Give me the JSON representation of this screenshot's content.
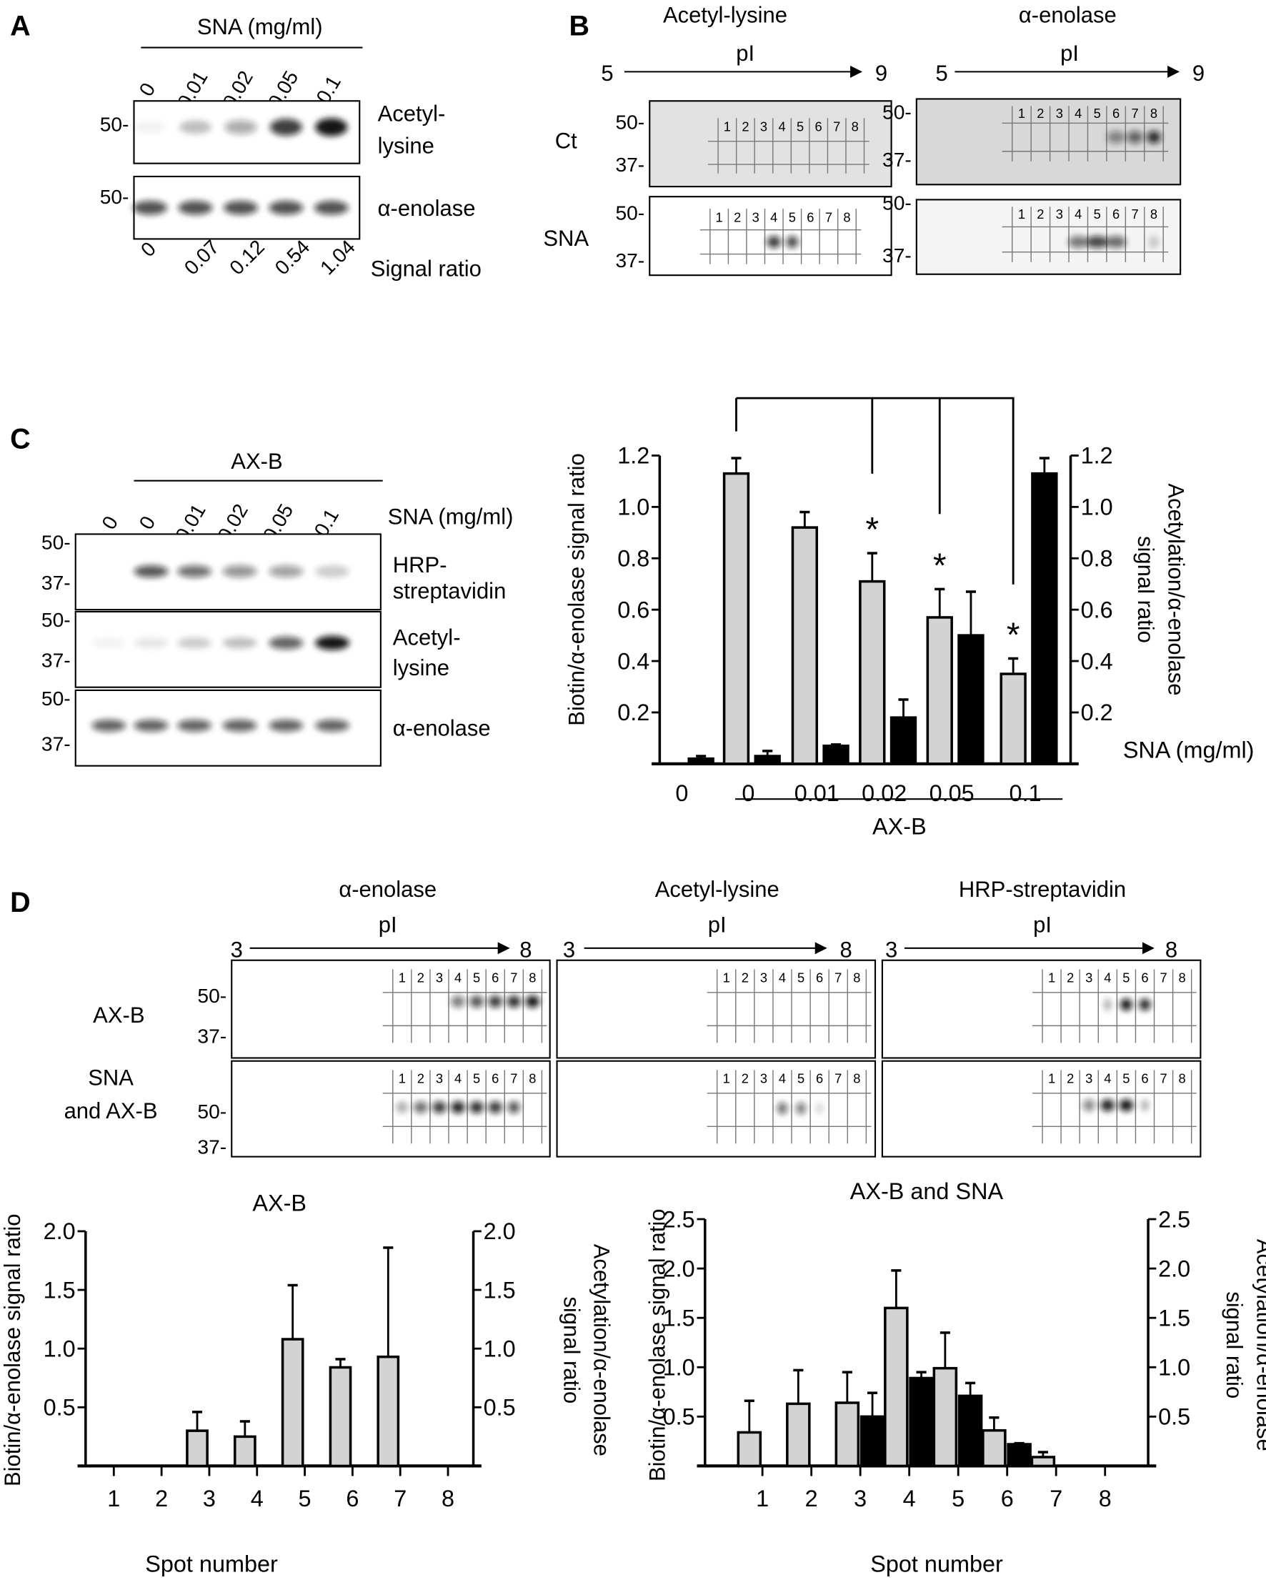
{
  "panel_labels": {
    "a": "A",
    "b": "B",
    "c": "C",
    "d": "D"
  },
  "panel_a": {
    "header": "SNA (mg/ml)",
    "lanes": [
      "0",
      "0.01",
      "0.02",
      "0.05",
      "0.1"
    ],
    "mw": [
      "50-",
      "50-"
    ],
    "blot_labels": [
      [
        "Acetyl-",
        "lysine"
      ],
      [
        "α-enolase"
      ]
    ],
    "signal_ratio_values": [
      "0",
      "0.07",
      "0.12",
      "0.54",
      "1.04"
    ],
    "signal_ratio_label": "Signal ratio"
  },
  "panel_b": {
    "columns": [
      "Acetyl-lysine",
      "α-enolase"
    ],
    "pi_label": "pI",
    "pi_start": "5",
    "pi_end": "9",
    "rows": [
      "Ct",
      "SNA"
    ],
    "mw": [
      "50-",
      "37-"
    ],
    "spots": [
      "1",
      "2",
      "3",
      "4",
      "5",
      "6",
      "7",
      "8"
    ]
  },
  "panel_c": {
    "header": "AX-B",
    "lanes": [
      "0",
      "0",
      "0.01",
      "0.02",
      "0.05",
      "0.1"
    ],
    "lane_unit": "SNA (mg/ml)",
    "mw": [
      "50-",
      "37-"
    ],
    "blot_labels": [
      [
        "HRP-",
        "streptavidin"
      ],
      [
        "Acetyl-",
        "lysine"
      ],
      [
        "α-enolase"
      ]
    ]
  },
  "panel_d": {
    "columns": [
      "α-enolase",
      "Acetyl-lysine",
      "HRP-streptavidin"
    ],
    "pi_label": "pI",
    "pi_start": "3",
    "pi_end": "8",
    "rows": [
      [
        "AX-B"
      ],
      [
        "SNA",
        "and AX-B"
      ]
    ],
    "mw": [
      "50-",
      "37-"
    ],
    "spots": [
      "1",
      "2",
      "3",
      "4",
      "5",
      "6",
      "7",
      "8"
    ]
  },
  "chart_data": [
    {
      "type": "bar",
      "panel": "C",
      "categories": [
        "0",
        "0",
        "0.01",
        "0.02",
        "0.05",
        "0.1"
      ],
      "xlabel": "SNA (mg/ml)",
      "group_label": "AX-B",
      "ylabel": "Biotin/α-enolase signal ratio",
      "y2label": [
        "Acetylation/α-enolase",
        "signal ratio"
      ],
      "ylim": [
        0,
        1.2
      ],
      "yticks": [
        "0.2",
        "0.4",
        "0.6",
        "0.8",
        "1.0",
        "1.2"
      ],
      "series": [
        {
          "color": "#d3d3d3",
          "axis": "left",
          "values": [
            0,
            1.13,
            0.92,
            0.71,
            0.57,
            0.35
          ],
          "errors": [
            0,
            0.06,
            0.06,
            0.11,
            0.11,
            0.06
          ]
        },
        {
          "color": "#000000",
          "axis": "right",
          "values": [
            0.02,
            0.03,
            0.07,
            0.18,
            0.5,
            1.13
          ],
          "errors": [
            0.01,
            0.02,
            0.005,
            0.07,
            0.17,
            0.06
          ]
        }
      ],
      "significance": {
        "marker": "*",
        "reference_index": 1,
        "indices": [
          3,
          4,
          5
        ]
      },
      "grid": false
    },
    {
      "type": "bar",
      "panel": "D",
      "title": "AX-B",
      "categories": [
        "1",
        "2",
        "3",
        "4",
        "5",
        "6",
        "7",
        "8"
      ],
      "xlabel": "Spot number",
      "ylabel": "Biotin/α-enolase signal ratio",
      "y2label": [
        "Acetylation/α-enolase",
        "signal ratio"
      ],
      "ylim": [
        0,
        2.0
      ],
      "yticks": [
        "0.5",
        "1.0",
        "1.5",
        "2.0"
      ],
      "series": [
        {
          "color": "#d3d3d3",
          "axis": "left",
          "values": [
            0,
            0,
            0.3,
            0.25,
            1.08,
            0.84,
            0.93,
            0
          ],
          "errors": [
            0,
            0,
            0.16,
            0.13,
            0.46,
            0.07,
            0.93,
            0
          ]
        }
      ],
      "grid": false
    },
    {
      "type": "bar",
      "panel": "D",
      "title": "AX-B and SNA",
      "categories": [
        "1",
        "2",
        "3",
        "4",
        "5",
        "6",
        "7",
        "8"
      ],
      "xlabel": "Spot number",
      "ylabel": "Biotin/α-enolase signal ratio",
      "y2label": [
        "Acetylation/α-enolase",
        "signal ratio"
      ],
      "ylim": [
        0,
        2.5
      ],
      "yticks": [
        "0.5",
        "1.0",
        "1.5",
        "2.0",
        "2.5"
      ],
      "series": [
        {
          "color": "#d3d3d3",
          "axis": "left",
          "values": [
            0.34,
            0.63,
            0.64,
            1.6,
            0.99,
            0.36,
            0.09,
            0
          ],
          "errors": [
            0.32,
            0.34,
            0.31,
            0.38,
            0.36,
            0.13,
            0.05,
            0
          ]
        },
        {
          "color": "#000000",
          "axis": "right",
          "values": [
            0,
            0,
            0.5,
            0.89,
            0.71,
            0.22,
            0,
            0
          ],
          "errors": [
            0,
            0,
            0.24,
            0.06,
            0.13,
            0.01,
            0,
            0
          ]
        }
      ],
      "grid": false
    }
  ]
}
